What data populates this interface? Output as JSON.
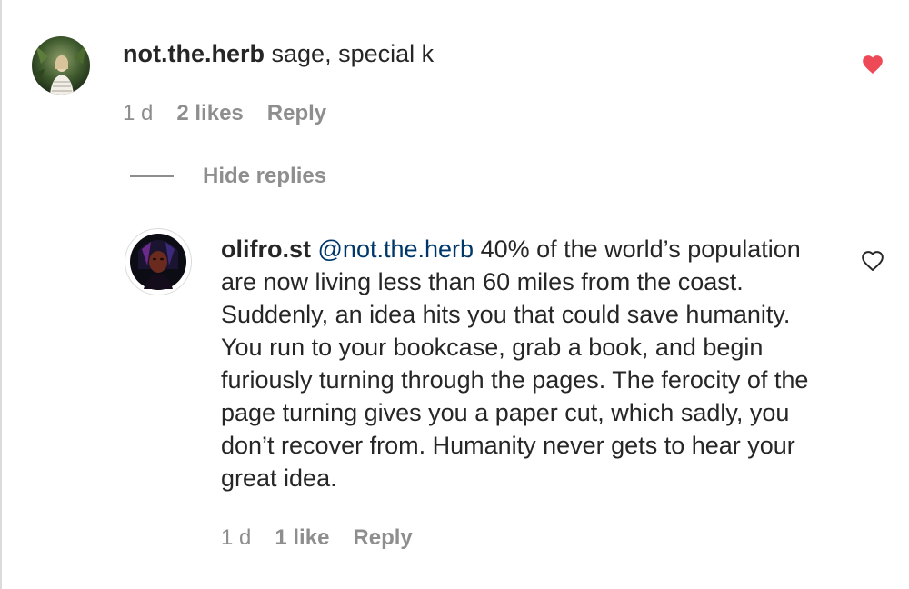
{
  "comment": {
    "username": "not.the.herb",
    "text": "sage, special k",
    "time": "1 d",
    "likes": "2 likes",
    "reply_label": "Reply",
    "liked": true,
    "heart_color": "#ed4956",
    "avatar_icon": "avatar-photo-plants"
  },
  "replies_toggle": {
    "label": "Hide replies"
  },
  "reply": {
    "username": "olifro.st",
    "mention": "@not.the.herb",
    "text": "40% of the world’s population are now living less than 60 miles from the coast. Suddenly, an idea hits you that could save humanity. You run to your bookcase, grab a book, and begin furiously turning through the pages. The ferocity of the page turning gives you a paper cut, which sadly, you don’t recover from. Humanity never gets to hear your great idea.",
    "time": "1 d",
    "likes": "1 like",
    "reply_label": "Reply",
    "liked": false,
    "avatar_icon": "avatar-photo-dark-portrait"
  }
}
